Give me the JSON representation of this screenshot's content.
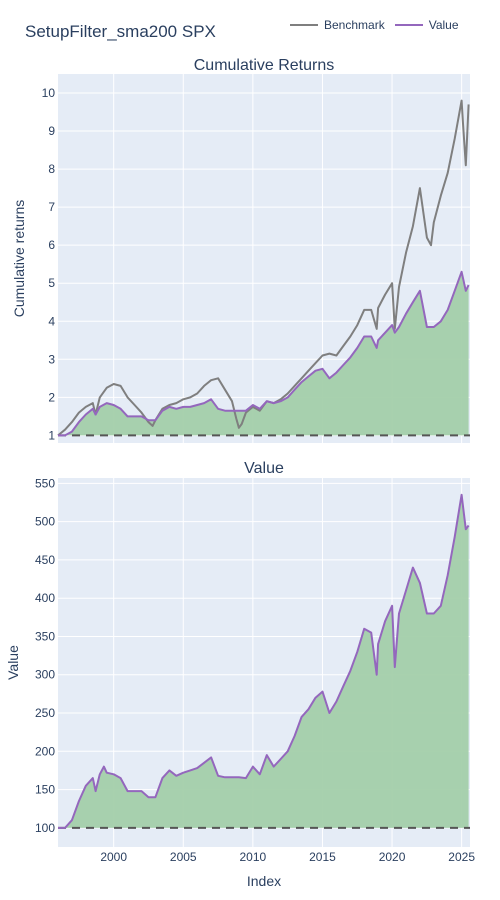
{
  "title": "SetupFilter_sma200 SPX",
  "legend": [
    {
      "name": "Benchmark",
      "color": "#7f7f7f"
    },
    {
      "name": "Value",
      "color": "#9467bd"
    }
  ],
  "colors": {
    "plot_bg": "#e5ecf6",
    "fill": "#a3cfaa",
    "baseline": "#555555"
  },
  "chart_data": [
    {
      "type": "line",
      "title": "Cumulative Returns",
      "xlabel": "",
      "ylabel": "Cumulative returns",
      "xlim": [
        1996.0,
        2025.6
      ],
      "ylim": [
        0.8,
        10.5
      ],
      "yticks": [
        1,
        2,
        3,
        4,
        5,
        6,
        7,
        8,
        9,
        10
      ],
      "baseline": 1,
      "series": [
        {
          "name": "Benchmark",
          "color": "#7f7f7f",
          "x": [
            1996.0,
            1996.5,
            1997.0,
            1997.5,
            1998.0,
            1998.5,
            1998.7,
            1999.0,
            1999.5,
            2000.0,
            2000.5,
            2001.0,
            2001.5,
            2002.0,
            2002.5,
            2002.8,
            2003.0,
            2003.5,
            2004.0,
            2004.5,
            2005.0,
            2005.5,
            2006.0,
            2006.5,
            2007.0,
            2007.5,
            2008.0,
            2008.5,
            2008.8,
            2009.0,
            2009.2,
            2009.5,
            2010.0,
            2010.5,
            2011.0,
            2011.5,
            2012.0,
            2012.5,
            2013.0,
            2013.5,
            2014.0,
            2014.5,
            2015.0,
            2015.5,
            2016.0,
            2016.5,
            2017.0,
            2017.5,
            2018.0,
            2018.5,
            2018.9,
            2019.0,
            2019.5,
            2020.0,
            2020.2,
            2020.5,
            2021.0,
            2021.5,
            2022.0,
            2022.5,
            2022.8,
            2023.0,
            2023.5,
            2024.0,
            2024.5,
            2025.0,
            2025.1,
            2025.3,
            2025.5
          ],
          "y": [
            1.0,
            1.15,
            1.35,
            1.6,
            1.75,
            1.85,
            1.55,
            2.0,
            2.25,
            2.35,
            2.3,
            2.0,
            1.8,
            1.6,
            1.35,
            1.25,
            1.4,
            1.7,
            1.8,
            1.85,
            1.95,
            2.0,
            2.1,
            2.3,
            2.45,
            2.5,
            2.2,
            1.9,
            1.45,
            1.2,
            1.3,
            1.6,
            1.75,
            1.65,
            1.9,
            1.85,
            1.95,
            2.1,
            2.3,
            2.5,
            2.7,
            2.9,
            3.1,
            3.15,
            3.1,
            3.35,
            3.6,
            3.9,
            4.3,
            4.3,
            3.8,
            4.35,
            4.7,
            5.0,
            3.8,
            4.9,
            5.8,
            6.5,
            7.5,
            6.2,
            6.0,
            6.6,
            7.3,
            7.9,
            8.8,
            9.8,
            9.2,
            8.1,
            9.7
          ]
        },
        {
          "name": "Value",
          "color": "#9467bd",
          "x": [
            1996.0,
            1996.5,
            1997.0,
            1997.5,
            1998.0,
            1998.5,
            1998.7,
            1999.0,
            1999.5,
            2000.0,
            2000.5,
            2001.0,
            2002.0,
            2002.5,
            2003.0,
            2003.5,
            2004.0,
            2004.5,
            2005.0,
            2005.5,
            2006.0,
            2006.5,
            2007.0,
            2007.5,
            2008.0,
            2009.0,
            2009.5,
            2010.0,
            2010.5,
            2011.0,
            2011.5,
            2012.0,
            2012.5,
            2013.0,
            2013.5,
            2014.0,
            2014.5,
            2015.0,
            2015.5,
            2016.0,
            2016.5,
            2017.0,
            2017.5,
            2018.0,
            2018.5,
            2018.9,
            2019.0,
            2019.5,
            2020.0,
            2020.2,
            2020.5,
            2021.0,
            2021.5,
            2022.0,
            2022.5,
            2023.0,
            2023.5,
            2024.0,
            2024.5,
            2025.0,
            2025.3,
            2025.5
          ],
          "y": [
            1.0,
            1.0,
            1.1,
            1.35,
            1.55,
            1.7,
            1.55,
            1.75,
            1.85,
            1.8,
            1.7,
            1.5,
            1.5,
            1.4,
            1.4,
            1.65,
            1.75,
            1.7,
            1.75,
            1.75,
            1.8,
            1.85,
            1.95,
            1.7,
            1.65,
            1.65,
            1.65,
            1.8,
            1.7,
            1.9,
            1.85,
            1.9,
            2.0,
            2.2,
            2.4,
            2.55,
            2.7,
            2.75,
            2.5,
            2.65,
            2.85,
            3.05,
            3.3,
            3.6,
            3.6,
            3.3,
            3.5,
            3.7,
            3.9,
            3.7,
            3.85,
            4.2,
            4.5,
            4.8,
            3.85,
            3.85,
            4.0,
            4.3,
            4.8,
            5.3,
            4.8,
            4.95
          ]
        }
      ]
    },
    {
      "type": "area",
      "title": "Value",
      "xlabel": "Index",
      "ylabel": "Value",
      "xlim": [
        1996.0,
        2025.6
      ],
      "ylim": [
        75,
        557
      ],
      "yticks": [
        100,
        150,
        200,
        250,
        300,
        350,
        400,
        450,
        500,
        550
      ],
      "xticks": [
        2000,
        2005,
        2010,
        2015,
        2020,
        2025
      ],
      "baseline": 100,
      "series": [
        {
          "name": "Value",
          "color": "#9467bd",
          "x": [
            1996.0,
            1996.5,
            1997.0,
            1997.5,
            1998.0,
            1998.5,
            1998.7,
            1999.0,
            1999.3,
            1999.5,
            2000.0,
            2000.5,
            2001.0,
            2002.0,
            2002.5,
            2003.0,
            2003.5,
            2004.0,
            2004.5,
            2005.0,
            2005.5,
            2006.0,
            2006.5,
            2007.0,
            2007.5,
            2008.0,
            2009.0,
            2009.5,
            2010.0,
            2010.5,
            2011.0,
            2011.5,
            2012.0,
            2012.5,
            2013.0,
            2013.5,
            2014.0,
            2014.5,
            2015.0,
            2015.5,
            2016.0,
            2016.5,
            2017.0,
            2017.5,
            2018.0,
            2018.5,
            2018.9,
            2019.0,
            2019.5,
            2020.0,
            2020.2,
            2020.5,
            2021.0,
            2021.5,
            2022.0,
            2022.5,
            2023.0,
            2023.5,
            2024.0,
            2024.5,
            2025.0,
            2025.3,
            2025.5
          ],
          "y": [
            100,
            100,
            110,
            135,
            155,
            165,
            148,
            170,
            180,
            172,
            170,
            165,
            148,
            148,
            140,
            140,
            165,
            175,
            168,
            172,
            175,
            178,
            185,
            192,
            168,
            166,
            166,
            165,
            180,
            170,
            195,
            180,
            190,
            200,
            220,
            245,
            255,
            270,
            278,
            250,
            265,
            285,
            305,
            330,
            360,
            355,
            300,
            340,
            370,
            390,
            310,
            380,
            410,
            440,
            420,
            380,
            380,
            390,
            430,
            480,
            535,
            490,
            495
          ]
        }
      ]
    }
  ]
}
